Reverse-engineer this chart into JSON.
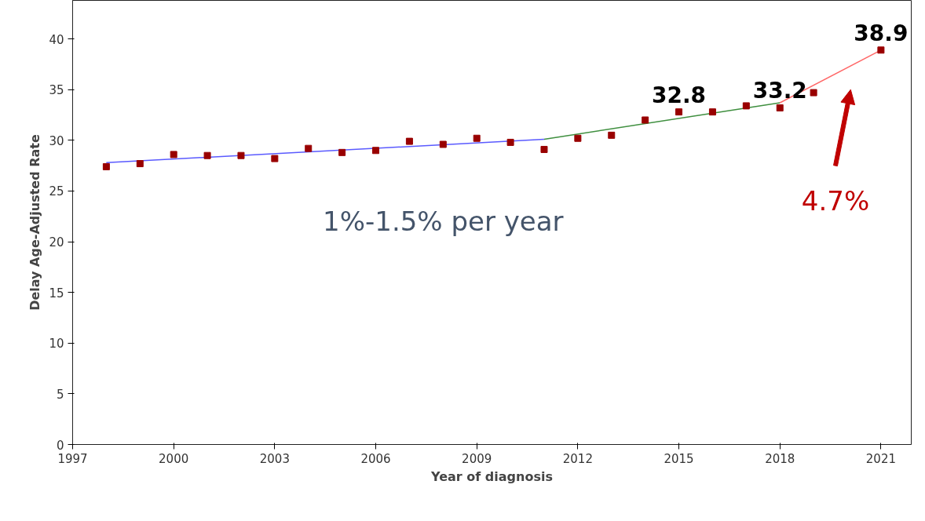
{
  "chart_data": {
    "type": "line",
    "xlabel": "Year of diagnosis",
    "ylabel": "Delay Age-Adjusted Rate",
    "xlim": [
      1997,
      2021.9
    ],
    "xticks": [
      1997,
      2000,
      2003,
      2006,
      2009,
      2012,
      2015,
      2018,
      2021
    ],
    "ylim": [
      0,
      43.8
    ],
    "yticks": [
      0,
      5,
      10,
      15,
      20,
      25,
      30,
      35,
      40
    ],
    "grid": false,
    "series": [
      {
        "color": "#5a5aff",
        "x": [
          1998,
          2011
        ],
        "values": [
          27.8,
          30.1
        ]
      },
      {
        "color": "#3f8f3f",
        "x": [
          2011,
          2018
        ],
        "values": [
          30.1,
          33.7
        ]
      },
      {
        "color": "#ff6666",
        "x": [
          2018,
          2021
        ],
        "values": [
          33.7,
          38.9
        ]
      },
      {
        "type": "scatter",
        "marker": "square",
        "color": "#990000",
        "x": [
          1998,
          1999,
          2000,
          2001,
          2002,
          2003,
          2004,
          2005,
          2006,
          2007,
          2008,
          2009,
          2010,
          2011,
          2012,
          2013,
          2014,
          2015,
          2016,
          2017,
          2018,
          2019,
          2021
        ],
        "values": [
          27.4,
          27.7,
          28.6,
          28.5,
          28.5,
          28.2,
          29.2,
          28.8,
          29.0,
          29.9,
          29.6,
          30.2,
          29.8,
          29.1,
          30.2,
          30.5,
          32.0,
          32.8,
          32.8,
          33.4,
          33.2,
          34.7,
          38.9
        ],
        "value_labels": [
          null,
          null,
          null,
          null,
          null,
          null,
          null,
          null,
          null,
          null,
          null,
          null,
          null,
          null,
          null,
          null,
          null,
          "32.8",
          null,
          null,
          "33.2",
          null,
          "38.9"
        ]
      }
    ],
    "annotations": [
      "1%-1.5% per year",
      "4.7%"
    ]
  }
}
